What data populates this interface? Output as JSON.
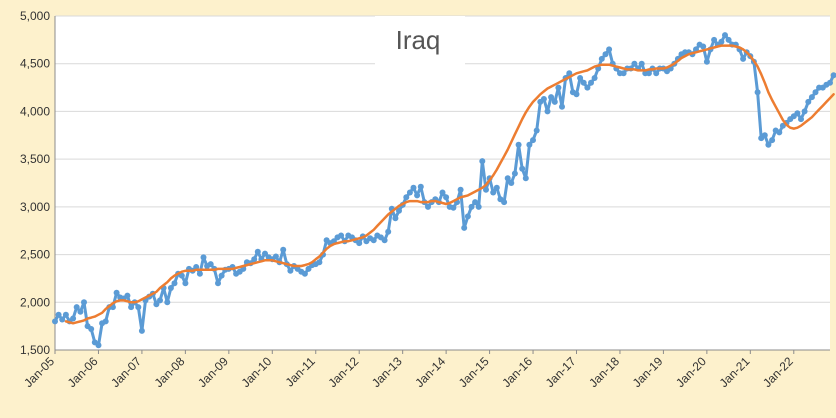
{
  "chart_data": {
    "type": "line",
    "title": "Iraq",
    "xlabel": "",
    "ylabel": "",
    "ylim": [
      1500,
      5000
    ],
    "yticks": [
      "1,500",
      "2,000",
      "2,500",
      "3,000",
      "3,500",
      "4,000",
      "4,500",
      "5,000"
    ],
    "ytick_values": [
      1500,
      2000,
      2500,
      3000,
      3500,
      4000,
      4500,
      5000
    ],
    "xticks": [
      "Jan-05",
      "Jan-06",
      "Jan-07",
      "Jan-08",
      "Jan-09",
      "Jan-10",
      "Jan-11",
      "Jan-12",
      "Jan-13",
      "Jan-14",
      "Jan-15",
      "Jan-16",
      "Jan-17",
      "Jan-18",
      "Jan-19",
      "Jan-20",
      "Jan-21",
      "Jan-22"
    ],
    "grid": "horizontal",
    "legend": "none",
    "series": [
      {
        "color": "#5b9bd5",
        "markers": true,
        "start": "Jan-05",
        "values": [
          1800,
          1870,
          1820,
          1870,
          1800,
          1830,
          1950,
          1900,
          2000,
          1750,
          1720,
          1580,
          1550,
          1780,
          1800,
          1950,
          1950,
          2100,
          2050,
          2040,
          2070,
          1950,
          2000,
          1950,
          1700,
          2020,
          2060,
          2090,
          1980,
          2020,
          2150,
          2000,
          2150,
          2200,
          2300,
          2280,
          2200,
          2350,
          2330,
          2370,
          2300,
          2470,
          2380,
          2400,
          2350,
          2200,
          2280,
          2340,
          2350,
          2370,
          2300,
          2320,
          2350,
          2420,
          2410,
          2450,
          2530,
          2450,
          2510,
          2470,
          2450,
          2480,
          2420,
          2550,
          2400,
          2330,
          2380,
          2350,
          2320,
          2300,
          2350,
          2390,
          2400,
          2420,
          2500,
          2650,
          2620,
          2640,
          2680,
          2700,
          2640,
          2700,
          2680,
          2650,
          2620,
          2690,
          2640,
          2670,
          2650,
          2700,
          2680,
          2650,
          2740,
          2980,
          2880,
          2960,
          3020,
          3100,
          3150,
          3200,
          3120,
          3210,
          3050,
          3000,
          3050,
          3080,
          3050,
          3150,
          3100,
          3000,
          2990,
          3050,
          3180,
          2780,
          2900,
          3000,
          3050,
          3000,
          3480,
          3180,
          3300,
          3150,
          3200,
          3080,
          3050,
          3300,
          3250,
          3350,
          3650,
          3400,
          3300,
          3650,
          3700,
          3800,
          4100,
          4130,
          4000,
          4150,
          4100,
          4250,
          4050,
          4350,
          4400,
          4200,
          4180,
          4350,
          4300,
          4250,
          4300,
          4350,
          4450,
          4550,
          4600,
          4650,
          4500,
          4450,
          4400,
          4400,
          4450,
          4450,
          4500,
          4450,
          4500,
          4400,
          4400,
          4450,
          4400,
          4450,
          4450,
          4420,
          4450,
          4500,
          4550,
          4600,
          4620,
          4620,
          4600,
          4650,
          4700,
          4680,
          4520,
          4650,
          4750,
          4700,
          4730,
          4800,
          4750,
          4700,
          4700,
          4650,
          4550,
          4620,
          4580,
          4520,
          4200,
          3720,
          3750,
          3650,
          3700,
          3800,
          3780,
          3850,
          3880,
          3920,
          3950,
          3980,
          3920,
          4000,
          4100,
          4150,
          4200,
          4250,
          4250,
          4280,
          4300,
          4380
        ]
      },
      {
        "color": "#ed7d31",
        "markers": false,
        "start": "Apr-05",
        "values": [
          1800,
          1790,
          1780,
          1790,
          1800,
          1810,
          1830,
          1840,
          1850,
          1870,
          1890,
          1930,
          1960,
          1990,
          2010,
          2020,
          2020,
          2010,
          2000,
          2000,
          2010,
          2030,
          2050,
          2070,
          2090,
          2110,
          2150,
          2180,
          2210,
          2250,
          2280,
          2300,
          2320,
          2330,
          2330,
          2330,
          2340,
          2340,
          2340,
          2340,
          2340,
          2340,
          2350,
          2350,
          2350,
          2350,
          2350,
          2360,
          2370,
          2380,
          2390,
          2400,
          2410,
          2420,
          2430,
          2440,
          2440,
          2440,
          2430,
          2420,
          2410,
          2400,
          2390,
          2380,
          2380,
          2380,
          2390,
          2400,
          2420,
          2450,
          2480,
          2520,
          2560,
          2590,
          2610,
          2620,
          2630,
          2640,
          2640,
          2650,
          2660,
          2670,
          2680,
          2700,
          2730,
          2760,
          2800,
          2840,
          2880,
          2920,
          2950,
          2980,
          3010,
          3030,
          3050,
          3060,
          3060,
          3060,
          3050,
          3050,
          3050,
          3060,
          3060,
          3050,
          3040,
          3030,
          3040,
          3060,
          3080,
          3100,
          3110,
          3120,
          3140,
          3160,
          3180,
          3200,
          3230,
          3280,
          3330,
          3390,
          3460,
          3530,
          3600,
          3680,
          3760,
          3840,
          3920,
          3990,
          4050,
          4100,
          4140,
          4180,
          4210,
          4240,
          4260,
          4280,
          4300,
          4320,
          4340,
          4360,
          4380,
          4400,
          4410,
          4420,
          4430,
          4450,
          4470,
          4480,
          4490,
          4490,
          4490,
          4480,
          4470,
          4460,
          4450,
          4440,
          4440,
          4440,
          4430,
          4430,
          4430,
          4440,
          4440,
          4450,
          4450,
          4450,
          4460,
          4480,
          4500,
          4530,
          4560,
          4580,
          4600,
          4610,
          4620,
          4630,
          4640,
          4650,
          4660,
          4670,
          4680,
          4690,
          4690,
          4690,
          4690,
          4680,
          4670,
          4650,
          4620,
          4580,
          4530,
          4470,
          4390,
          4300,
          4200,
          4120,
          4050,
          3980,
          3910,
          3860,
          3830,
          3820,
          3830,
          3850,
          3880,
          3910,
          3940,
          3980,
          4020,
          4060,
          4100,
          4140,
          4180
        ]
      }
    ]
  },
  "colors": {
    "background": "#fdf1cc",
    "plot_background": "#ffffff",
    "gridline": "#d9d9d9",
    "axis": "#8c8c8c"
  }
}
